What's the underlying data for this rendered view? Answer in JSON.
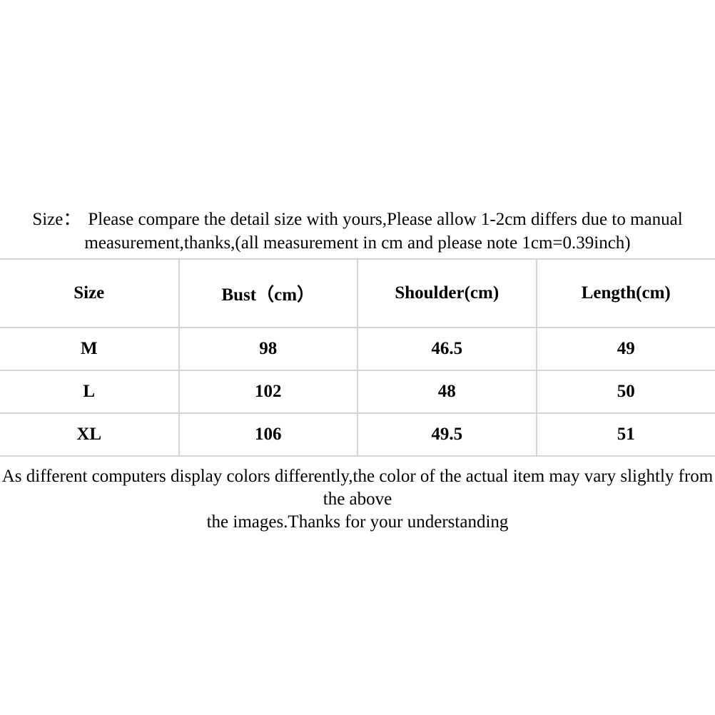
{
  "notice": {
    "prefix": "Size：",
    "line1": "Please compare the detail size with yours,Please allow 1-2cm differs due to manual",
    "line2": "measurement,thanks,(all measurement in cm and please note 1cm=0.39inch)"
  },
  "size_table": {
    "headers": [
      "Size",
      "Bust（cm）",
      "Shoulder(cm)",
      "Length(cm)"
    ],
    "rows": [
      [
        "M",
        "98",
        "46.5",
        "49"
      ],
      [
        "L",
        "102",
        "48",
        "50"
      ],
      [
        "XL",
        "106",
        "49.5",
        "51"
      ]
    ]
  },
  "disclaimer": {
    "line1": "As different computers display colors differently,the color of the actual item may vary slightly from the above",
    "line2": "the images.Thanks for your understanding"
  },
  "colors": {
    "border": "#d4d4d4",
    "text": "#000000",
    "bg": "#ffffff"
  }
}
